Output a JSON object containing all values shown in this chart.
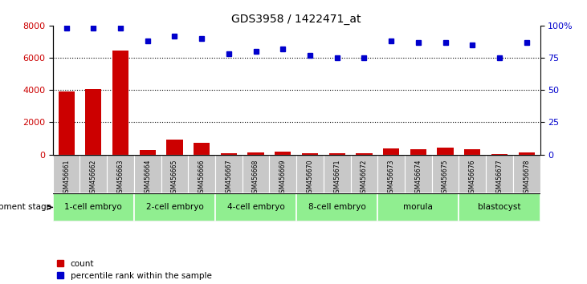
{
  "title": "GDS3958 / 1422471_at",
  "samples": [
    "GSM456661",
    "GSM456662",
    "GSM456663",
    "GSM456664",
    "GSM456665",
    "GSM456666",
    "GSM456667",
    "GSM456668",
    "GSM456669",
    "GSM456670",
    "GSM456671",
    "GSM456672",
    "GSM456673",
    "GSM456674",
    "GSM456675",
    "GSM456676",
    "GSM456677",
    "GSM456678"
  ],
  "counts": [
    3900,
    4050,
    6450,
    280,
    900,
    700,
    100,
    120,
    180,
    80,
    70,
    80,
    380,
    320,
    420,
    320,
    50,
    150
  ],
  "percentiles": [
    98,
    98,
    98,
    88,
    92,
    90,
    78,
    80,
    82,
    77,
    75,
    75,
    88,
    87,
    87,
    85,
    75,
    87
  ],
  "stages": [
    {
      "label": "1-cell embryo",
      "start": 0,
      "end": 3
    },
    {
      "label": "2-cell embryo",
      "start": 3,
      "end": 6
    },
    {
      "label": "4-cell embryo",
      "start": 6,
      "end": 9
    },
    {
      "label": "8-cell embryo",
      "start": 9,
      "end": 12
    },
    {
      "label": "morula",
      "start": 12,
      "end": 15
    },
    {
      "label": "blastocyst",
      "start": 15,
      "end": 18
    }
  ],
  "ylim_left": [
    0,
    8000
  ],
  "ylim_right": [
    0,
    100
  ],
  "yticks_left": [
    0,
    2000,
    4000,
    6000,
    8000
  ],
  "yticks_right": [
    0,
    25,
    50,
    75,
    100
  ],
  "ytick_labels_right": [
    "0",
    "25",
    "50",
    "75",
    "100%"
  ],
  "bar_color": "#CC0000",
  "dot_color": "#0000CC",
  "grid_color": "black",
  "background_color": "#ffffff",
  "stage_bg_color": "#90EE90",
  "sample_bg_color": "#C8C8C8",
  "legend_count_color": "#CC0000",
  "legend_pct_color": "#0000CC",
  "dev_stage_text": "development stage",
  "legend_count_label": "count",
  "legend_pct_label": "percentile rank within the sample"
}
